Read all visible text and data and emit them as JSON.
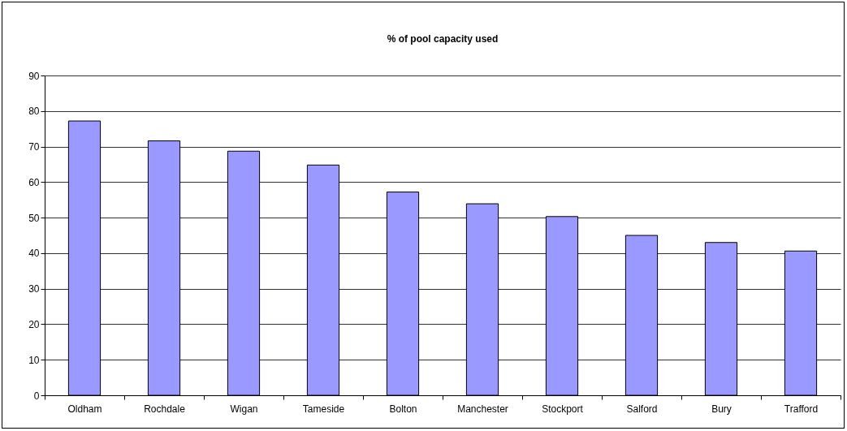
{
  "chart_data": {
    "type": "bar",
    "title": "% of pool capacity used",
    "categories": [
      "Oldham",
      "Rochdale",
      "Wigan",
      "Tameside",
      "Bolton",
      "Manchester",
      "Stockport",
      "Salford",
      "Bury",
      "Trafford"
    ],
    "values": [
      77.2,
      71.6,
      68.7,
      64.8,
      57.2,
      53.9,
      50.3,
      45,
      43,
      40.6
    ],
    "color": "#9999ff",
    "ylim": [
      0,
      90
    ],
    "yticks": [
      0,
      10,
      20,
      30,
      40,
      50,
      60,
      70,
      80,
      90
    ],
    "grid": "y"
  }
}
